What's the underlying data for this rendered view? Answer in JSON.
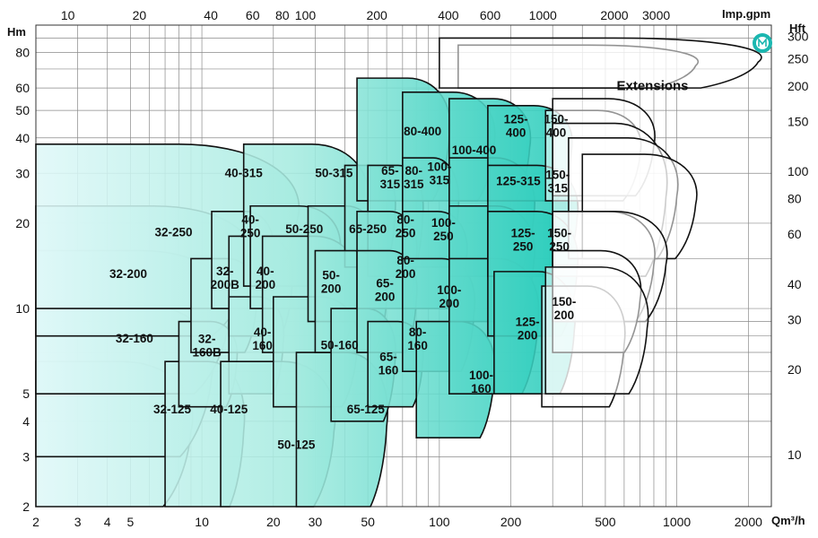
{
  "chart_data": {
    "type": "area",
    "title": "",
    "xlabel": "Qm³/h",
    "ylabel": "Hm",
    "x2label": "Imp.gpm",
    "y2label": "Hft",
    "x_scale": "log",
    "y_scale": "log",
    "xlim": [
      2,
      2500
    ],
    "ylim": [
      2,
      100
    ],
    "x_ticks": [
      "2",
      "3",
      "4",
      "5",
      "10",
      "20",
      "30",
      "50",
      "100",
      "200",
      "500",
      "1000",
      "2000"
    ],
    "y_ticks": [
      "2",
      "3",
      "4",
      "5",
      "10",
      "20",
      "30",
      "40",
      "50",
      "60",
      "80"
    ],
    "x2_ticks": [
      "10",
      "20",
      "40",
      "60",
      "80",
      "100",
      "200",
      "400",
      "600",
      "1000",
      "2000",
      "3000"
    ],
    "y2_ticks": [
      "10",
      "20",
      "30",
      "40",
      "60",
      "80",
      "100",
      "150",
      "200",
      "250",
      "300"
    ],
    "grid": true,
    "logo": "manufacturer-logo-icon",
    "colors": {
      "light": "#dff8f8",
      "dark": "#13c7b5",
      "edge": "#111111",
      "grid": "#8a8a8a"
    },
    "regions": [
      {
        "label": "32-125",
        "lines": [
          "32-125"
        ],
        "q": [
          2,
          9
        ],
        "h": [
          2,
          6.5
        ],
        "lx": 7.5,
        "ly": 4.4
      },
      {
        "label": "32-160",
        "lines": [
          "32-160"
        ],
        "q": [
          2,
          11
        ],
        "h": [
          3,
          10.5
        ],
        "lx": 5.2,
        "ly": 7.8
      },
      {
        "label": "32-200",
        "lines": [
          "32-200"
        ],
        "q": [
          2,
          13
        ],
        "h": [
          5,
          16
        ],
        "lx": 4.9,
        "ly": 13.2
      },
      {
        "label": "32-250",
        "lines": [
          "32-250"
        ],
        "q": [
          2,
          16
        ],
        "h": [
          8,
          23
        ],
        "lx": 7.6,
        "ly": 18.5
      },
      {
        "label": "40-315",
        "lines": [
          "40-315"
        ],
        "q": [
          2,
          25
        ],
        "h": [
          10,
          38
        ],
        "lx": 15,
        "ly": 30
      },
      {
        "label": "40-125",
        "lines": [
          "40-125"
        ],
        "q": [
          7,
          15
        ],
        "h": [
          2,
          6.5
        ],
        "lx": 13,
        "ly": 4.4
      },
      {
        "label": "32-160B",
        "lines": [
          "32-",
          "160B"
        ],
        "q": [
          8,
          14
        ],
        "h": [
          4.5,
          9
        ],
        "lx": 10.5,
        "ly": 7.4
      },
      {
        "label": "32-200B",
        "lines": [
          "32-",
          "200B"
        ],
        "q": [
          9,
          17
        ],
        "h": [
          7,
          15
        ],
        "lx": 12.5,
        "ly": 12.8
      },
      {
        "label": "40-250",
        "lines": [
          "40-",
          "250"
        ],
        "q": [
          11,
          20
        ],
        "h": [
          10,
          22
        ],
        "lx": 16,
        "ly": 19.5
      },
      {
        "label": "40-200",
        "lines": [
          "40-",
          "200"
        ],
        "q": [
          13,
          24
        ],
        "h": [
          8,
          18
        ],
        "lx": 18.5,
        "ly": 12.8
      },
      {
        "label": "40-160",
        "lines": [
          "40-",
          "160"
        ],
        "q": [
          13,
          22
        ],
        "h": [
          5,
          11
        ],
        "lx": 18,
        "ly": 7.8
      },
      {
        "label": "50-125",
        "lines": [
          "50-125"
        ],
        "q": [
          12,
          36
        ],
        "h": [
          2,
          6.5
        ],
        "lx": 25,
        "ly": 3.3
      },
      {
        "label": "50-315",
        "lines": [
          "50-315"
        ],
        "q": [
          15,
          50
        ],
        "h": [
          12,
          38
        ],
        "lx": 36,
        "ly": 30
      },
      {
        "label": "50-250",
        "lines": [
          "50-250"
        ],
        "q": [
          16,
          38
        ],
        "h": [
          10,
          23
        ],
        "lx": 27,
        "ly": 19
      },
      {
        "label": "50-200",
        "lines": [
          "50-",
          "200"
        ],
        "q": [
          18,
          45
        ],
        "h": [
          7,
          18
        ],
        "lx": 35,
        "ly": 12.4
      },
      {
        "label": "50-160",
        "lines": [
          "50-160"
        ],
        "q": [
          20,
          45
        ],
        "h": [
          4.5,
          11
        ],
        "lx": 38,
        "ly": 7.4
      },
      {
        "label": "65-125",
        "lines": [
          "65-125"
        ],
        "q": [
          25,
          60
        ],
        "h": [
          2,
          7
        ],
        "lx": 49,
        "ly": 4.4
      },
      {
        "label": "65-250",
        "lines": [
          "65-250"
        ],
        "q": [
          28,
          55
        ],
        "h": [
          9,
          23
        ],
        "lx": 50,
        "ly": 19
      },
      {
        "label": "65-315",
        "lines": [
          "65-",
          "315"
        ],
        "q": [
          40,
          65
        ],
        "h": [
          14,
          32
        ],
        "lx": 62,
        "ly": 29
      },
      {
        "label": "65-200",
        "lines": [
          "65-",
          "200"
        ],
        "q": [
          30,
          60
        ],
        "h": [
          7,
          16
        ],
        "lx": 59,
        "ly": 11.6
      },
      {
        "label": "65-160",
        "lines": [
          "65-",
          "160"
        ],
        "q": [
          35,
          65
        ],
        "h": [
          4,
          10
        ],
        "lx": 61,
        "ly": 6.4
      },
      {
        "label": "80-400",
        "lines": [
          "80-400"
        ],
        "q": [
          45,
          110
        ],
        "h": [
          24,
          65
        ],
        "lx": 85,
        "ly": 42
      },
      {
        "label": "80-315",
        "lines": [
          "80-",
          "315"
        ],
        "q": [
          50,
          85
        ],
        "h": [
          13,
          32
        ],
        "lx": 78,
        "ly": 29
      },
      {
        "label": "80-250",
        "lines": [
          "80-",
          "250"
        ],
        "q": [
          45,
          80
        ],
        "h": [
          10,
          22
        ],
        "lx": 72,
        "ly": 19.5
      },
      {
        "label": "80-200",
        "lines": [
          "80-",
          "200"
        ],
        "q": [
          45,
          80
        ],
        "h": [
          7,
          16
        ],
        "lx": 72,
        "ly": 14
      },
      {
        "label": "80-160",
        "lines": [
          "80-",
          "160"
        ],
        "q": [
          50,
          85
        ],
        "h": [
          4.5,
          9
        ],
        "lx": 81,
        "ly": 7.8
      },
      {
        "label": "100-400",
        "lines": [
          "100-400"
        ],
        "q": [
          70,
          170
        ],
        "h": [
          24,
          58
        ],
        "lx": 140,
        "ly": 36
      },
      {
        "label": "100-315",
        "lines": [
          "100-",
          "315"
        ],
        "q": [
          70,
          120
        ],
        "h": [
          14,
          34
        ],
        "lx": 100,
        "ly": 30
      },
      {
        "label": "100-250",
        "lines": [
          "100-",
          "250"
        ],
        "q": [
          70,
          130
        ],
        "h": [
          10,
          22
        ],
        "lx": 104,
        "ly": 19
      },
      {
        "label": "100-200",
        "lines": [
          "100-",
          "200"
        ],
        "q": [
          70,
          140
        ],
        "h": [
          6,
          15
        ],
        "lx": 110,
        "ly": 11
      },
      {
        "label": "100-160",
        "lines": [
          "100-",
          "160"
        ],
        "q": [
          80,
          170
        ],
        "h": [
          3.5,
          9
        ],
        "lx": 150,
        "ly": 5.5
      },
      {
        "label": "125-400",
        "lines": [
          "125-",
          "400"
        ],
        "q": [
          110,
          240
        ],
        "h": [
          24,
          55
        ],
        "lx": 210,
        "ly": 44
      },
      {
        "label": "125-315",
        "lines": [
          "125-315"
        ],
        "q": [
          110,
          250
        ],
        "h": [
          13,
          34
        ],
        "lx": 215,
        "ly": 28
      },
      {
        "label": "125-250",
        "lines": [
          "125-",
          "250"
        ],
        "q": [
          110,
          250
        ],
        "h": [
          9,
          23
        ],
        "lx": 225,
        "ly": 17.5
      },
      {
        "label": "125-200",
        "lines": [
          "125-",
          "200"
        ],
        "q": [
          110,
          260
        ],
        "h": [
          5,
          15
        ],
        "lx": 235,
        "ly": 8.5
      },
      {
        "label": "150-400",
        "lines": [
          "150-",
          "400"
        ],
        "q": [
          160,
          360
        ],
        "h": [
          24,
          52
        ],
        "lx": 310,
        "ly": 44
      },
      {
        "label": "150-315",
        "lines": [
          "150-",
          "315"
        ],
        "q": [
          160,
          380
        ],
        "h": [
          13,
          32
        ],
        "lx": 315,
        "ly": 28
      },
      {
        "label": "150-250",
        "lines": [
          "150-",
          "250"
        ],
        "q": [
          160,
          380
        ],
        "h": [
          8,
          22
        ],
        "lx": 320,
        "ly": 17.5
      },
      {
        "label": "150-200",
        "lines": [
          "150-",
          "200"
        ],
        "q": [
          170,
          370
        ],
        "h": [
          5,
          13.5
        ],
        "lx": 335,
        "ly": 10
      }
    ],
    "extensions": {
      "label": "Extensions",
      "label_pos": [
        790,
        59
      ],
      "outlines": [
        {
          "q": [
            280,
            700
          ],
          "h": [
            24,
            50
          ]
        },
        {
          "q": [
            300,
            800
          ],
          "h": [
            25,
            55
          ]
        },
        {
          "q": [
            300,
            900
          ],
          "h": [
            13,
            45
          ]
        },
        {
          "q": [
            350,
            1000
          ],
          "h": [
            15,
            40
          ]
        },
        {
          "q": [
            400,
            1200
          ],
          "h": [
            15,
            35
          ]
        },
        {
          "q": [
            300,
            800
          ],
          "h": [
            9,
            22
          ]
        },
        {
          "q": [
            300,
            900
          ],
          "h": [
            9,
            22
          ]
        },
        {
          "q": [
            270,
            600
          ],
          "h": [
            4.5,
            12
          ]
        },
        {
          "q": [
            300,
            700
          ],
          "h": [
            7,
            16
          ]
        },
        {
          "q": [
            280,
            750
          ],
          "h": [
            5,
            14
          ]
        },
        {
          "q": [
            120,
            1200
          ],
          "h": [
            60,
            85
          ]
        },
        {
          "q": [
            100,
            2200
          ],
          "h": [
            60,
            90
          ]
        }
      ]
    }
  }
}
